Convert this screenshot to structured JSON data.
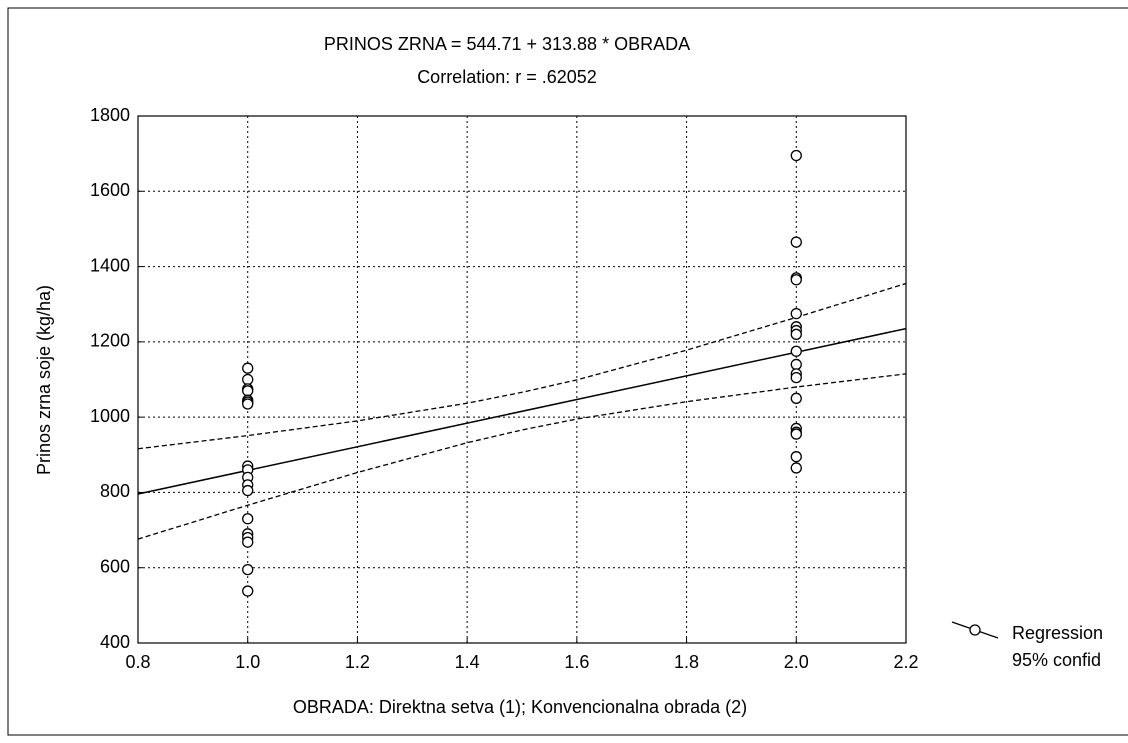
{
  "chart_data": {
    "type": "scatter",
    "title": "PRINOS ZRNA = 544.71 + 313.88 * OBRADA",
    "subtitle": "Correlation: r = .62052",
    "x_label": "OBRADA: Direktna setva (1); Konvencionalna obrada (2)",
    "y_label": "Prinos zrna soje (kg/ha)",
    "xlim": [
      0.8,
      2.2
    ],
    "ylim": [
      400,
      1800
    ],
    "xticks": [
      0.8,
      {
        "value": 1,
        "label": "1.0"
      },
      1.2,
      1.4,
      1.6,
      1.8,
      {
        "value": 2,
        "label": "2.0"
      },
      2.2
    ],
    "yticks": [
      400,
      600,
      800,
      1000,
      1200,
      1400,
      1600,
      1800
    ],
    "grid": true,
    "legend": "right",
    "series": [
      {
        "name": "Regression",
        "color": "#000000",
        "x": [
          1,
          1,
          1,
          1,
          1,
          1,
          1,
          1,
          1,
          1,
          1,
          1,
          1,
          1,
          1,
          1,
          1,
          1,
          2,
          2,
          2,
          2,
          2,
          2,
          2,
          2,
          2,
          2,
          2,
          2,
          2,
          2,
          2,
          2,
          2,
          2
        ],
        "values": [
          1130,
          1100,
          1075,
          1070,
          1045,
          1040,
          1035,
          870,
          860,
          840,
          820,
          805,
          730,
          690,
          680,
          668,
          595,
          538,
          1695,
          1465,
          1370,
          1365,
          1275,
          1240,
          1230,
          1220,
          1175,
          1140,
          1115,
          1105,
          1050,
          970,
          960,
          955,
          895,
          865
        ],
        "line_x": [
          0.8,
          2.2
        ],
        "line_values": [
          795.8,
          1235.2
        ]
      },
      {
        "name": "95% confid",
        "color": "#000000",
        "x": [
          0.8,
          1.0,
          1.2,
          1.4,
          1.5,
          1.6,
          1.8,
          2.0,
          2.2
        ],
        "upper": [
          916,
          951,
          990,
          1037,
          1066,
          1099,
          1178,
          1265,
          1355
        ],
        "lower": [
          676,
          766,
          853,
          932,
          966,
          995,
          1041,
          1080,
          1115
        ]
      }
    ]
  }
}
